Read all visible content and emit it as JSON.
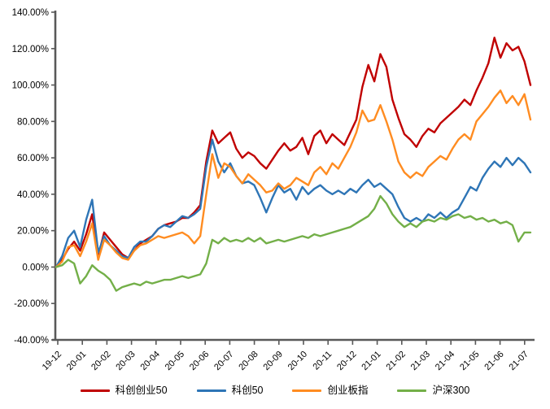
{
  "chart_data": {
    "type": "line",
    "x_labels": [
      "19-12",
      "20-01",
      "20-02",
      "20-03",
      "20-04",
      "20-05",
      "20-06",
      "20-07",
      "20-08",
      "20-09",
      "20-10",
      "20-11",
      "20-12",
      "21-01",
      "21-02",
      "21-03",
      "21-04",
      "21-05",
      "21-06",
      "21-07"
    ],
    "y_ticks": [
      {
        "label": "140.00%",
        "value": 140
      },
      {
        "label": "120.00%",
        "value": 120
      },
      {
        "label": "100.00%",
        "value": 100
      },
      {
        "label": "80.00%",
        "value": 80
      },
      {
        "label": "60.00%",
        "value": 60
      },
      {
        "label": "40.00%",
        "value": 40
      },
      {
        "label": "20.00%",
        "value": 20
      },
      {
        "label": "0.00%",
        "value": 0
      },
      {
        "label": "-20.00%",
        "value": -20
      },
      {
        "label": "-40.00%",
        "value": -40
      }
    ],
    "ylim": [
      -40,
      140
    ],
    "grid": false,
    "legend_position": "bottom",
    "axis_color": "#595959",
    "x_range": [
      "19-12",
      "21-07"
    ],
    "sampling": "80 evenly spaced points (approx. weekly) spanning 19-12 through late 21-07, values in percent",
    "series": [
      {
        "id": "kechuang-chuangye-50",
        "name": "科创创业50",
        "color": "#C00000",
        "values_pct": [
          0,
          4,
          10,
          14,
          9,
          18,
          29,
          6,
          19,
          15,
          11,
          7,
          5,
          9,
          13,
          15,
          17,
          21,
          23,
          24,
          25,
          27,
          27,
          30,
          34,
          58,
          75,
          68,
          71,
          74,
          65,
          60,
          63,
          61,
          57,
          54,
          59,
          64,
          68,
          64,
          66,
          71,
          62,
          72,
          75,
          68,
          73,
          70,
          67,
          74,
          81,
          99,
          111,
          102,
          117,
          110,
          92,
          82,
          73,
          70,
          66,
          72,
          76,
          74,
          79,
          82,
          85,
          88,
          92,
          89,
          97,
          104,
          112,
          126,
          115,
          123,
          119,
          121,
          113,
          100
        ]
      },
      {
        "id": "kechuang-50",
        "name": "科创50",
        "color": "#2E75B6",
        "values_pct": [
          0,
          6,
          16,
          20,
          11,
          26,
          37,
          8,
          17,
          12,
          9,
          6,
          5,
          11,
          14,
          14,
          17,
          21,
          23,
          22,
          25,
          28,
          27,
          29,
          32,
          55,
          70,
          58,
          52,
          57,
          50,
          46,
          47,
          45,
          38,
          30,
          38,
          45,
          41,
          43,
          37,
          44,
          40,
          43,
          45,
          42,
          40,
          42,
          40,
          43,
          41,
          45,
          48,
          44,
          46,
          43,
          40,
          33,
          27,
          25,
          27,
          25,
          29,
          27,
          30,
          27,
          30,
          32,
          38,
          44,
          42,
          49,
          54,
          58,
          55,
          60,
          56,
          60,
          57,
          52
        ]
      },
      {
        "id": "chuangyeban-zhi",
        "name": "创业板指",
        "color": "#FF8C21",
        "values_pct": [
          0,
          3,
          11,
          12,
          6,
          14,
          24,
          4,
          15,
          12,
          8,
          5,
          4,
          9,
          12,
          13,
          15,
          17,
          16,
          17,
          18,
          19,
          17,
          13,
          17,
          40,
          62,
          49,
          57,
          55,
          50,
          46,
          51,
          48,
          45,
          41,
          42,
          46,
          43,
          45,
          49,
          47,
          45,
          52,
          55,
          51,
          57,
          54,
          60,
          66,
          74,
          86,
          80,
          81,
          89,
          80,
          70,
          58,
          52,
          49,
          52,
          50,
          55,
          58,
          61,
          59,
          65,
          70,
          73,
          70,
          80,
          84,
          88,
          93,
          97,
          90,
          94,
          89,
          95,
          81
        ]
      },
      {
        "id": "hushen-300",
        "name": "沪深300",
        "color": "#73AF48",
        "values_pct": [
          0,
          1,
          4,
          2,
          -9,
          -5,
          1,
          -2,
          -4,
          -7,
          -13,
          -11,
          -10,
          -9,
          -10,
          -8,
          -9,
          -8,
          -7,
          -7,
          -6,
          -5,
          -6,
          -5,
          -4,
          2,
          15,
          13,
          16,
          14,
          15,
          14,
          16,
          14,
          16,
          13,
          14,
          15,
          14,
          15,
          16,
          17,
          16,
          18,
          17,
          18,
          19,
          20,
          21,
          22,
          24,
          26,
          28,
          32,
          39,
          35,
          29,
          25,
          22,
          24,
          22,
          25,
          26,
          25,
          27,
          26,
          28,
          29,
          27,
          28,
          26,
          27,
          25,
          26,
          24,
          25,
          23,
          14,
          19,
          19
        ]
      }
    ]
  }
}
